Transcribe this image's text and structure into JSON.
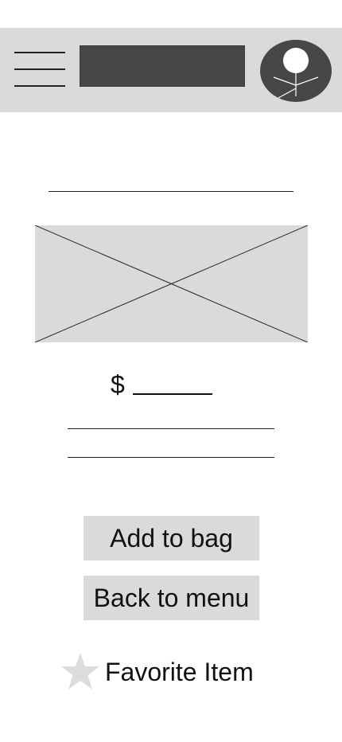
{
  "header": {
    "menu_icon": "hamburger-menu-icon",
    "title_placeholder": "dark-placeholder-bar",
    "avatar_icon": "user-avatar-icon",
    "background": "#dadada",
    "title_color": "#474747"
  },
  "item": {
    "image_icon": "image-placeholder-icon",
    "price_symbol": "$"
  },
  "actions": {
    "add_to_bag_label": "Add to bag",
    "back_to_menu_label": "Back to menu"
  },
  "favorite": {
    "icon": "star-icon",
    "label": "Favorite Item",
    "star_color": "#dcdcdc"
  }
}
